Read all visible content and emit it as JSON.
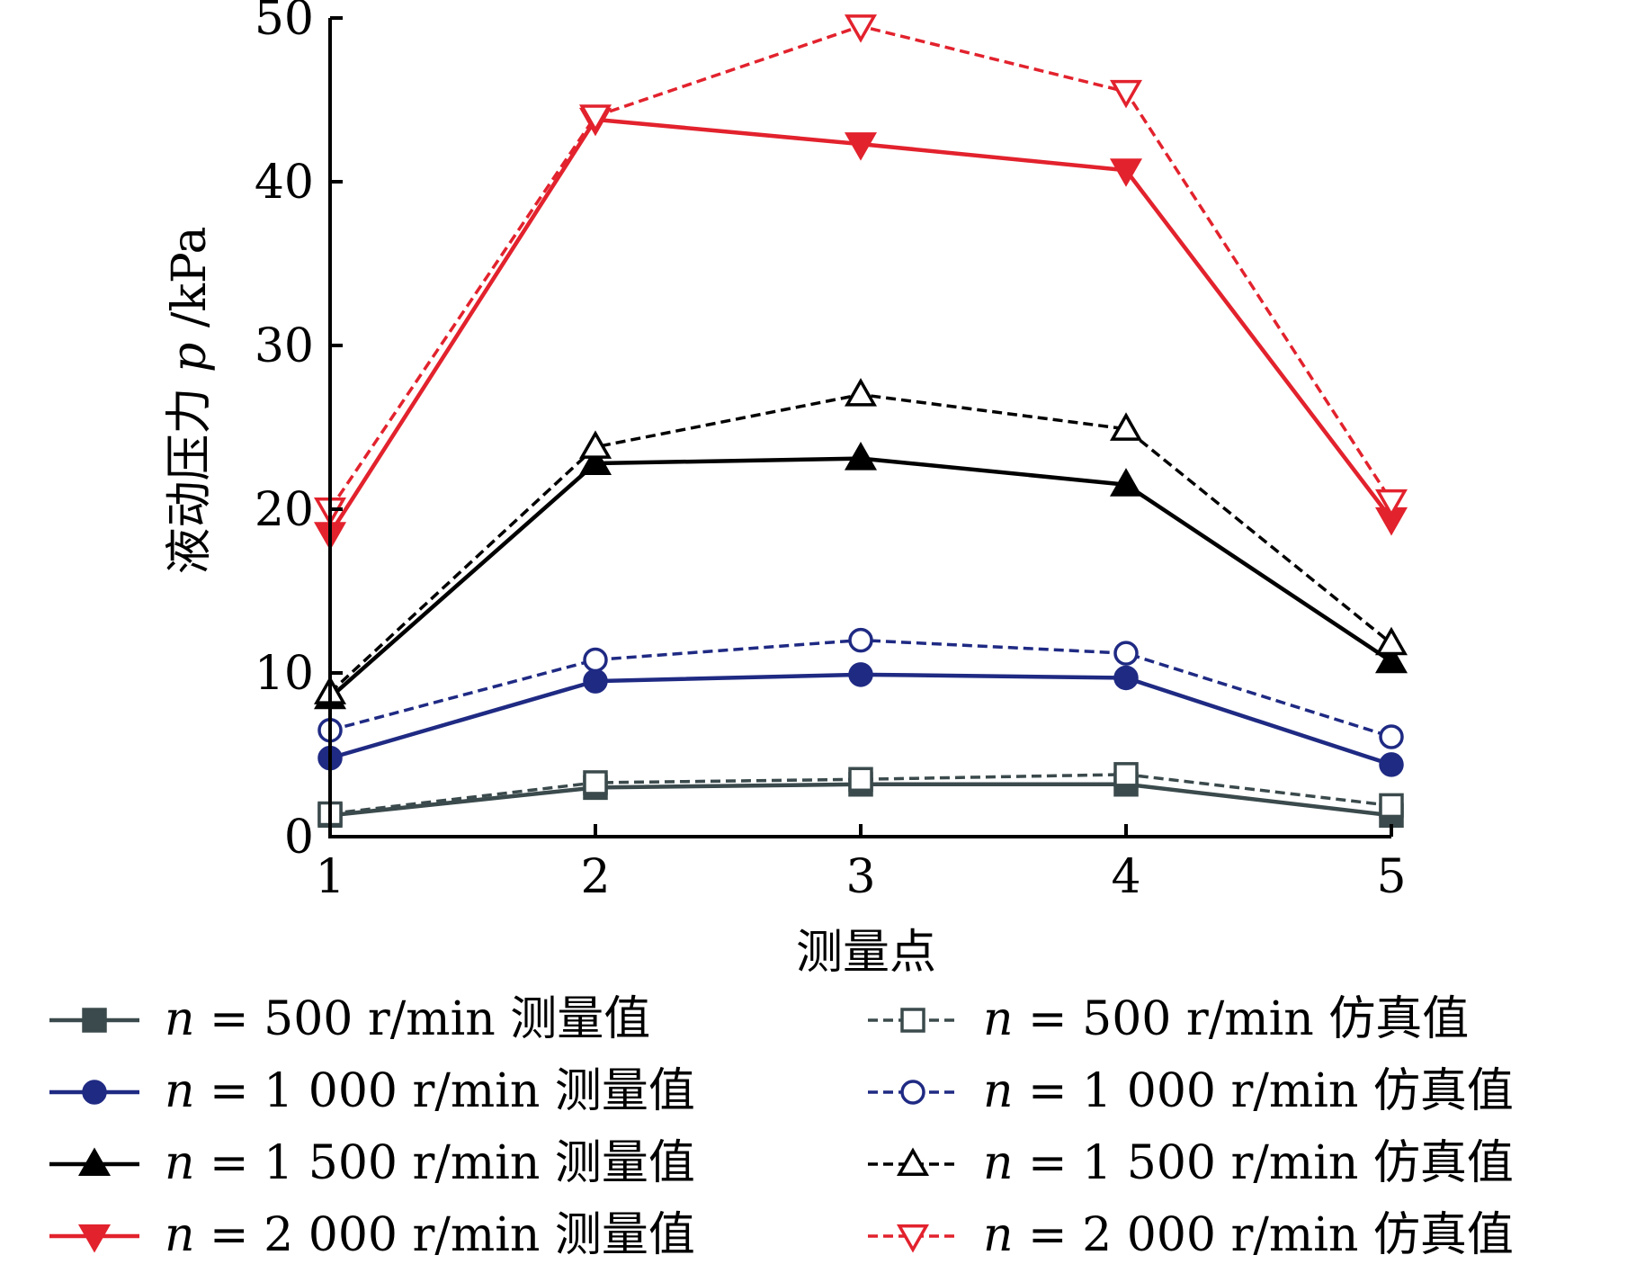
{
  "chart_data": {
    "type": "line",
    "title": "",
    "xlabel": "测量点",
    "ylabel": "液动压力 p /kPa",
    "ylabel_parts": {
      "prefix": "液动压力 ",
      "symbol": "p",
      "suffix": " /kPa"
    },
    "x": [
      1,
      2,
      3,
      4,
      5
    ],
    "xlim": [
      1,
      5
    ],
    "ylim": [
      0,
      50
    ],
    "xticks": [
      "1",
      "2",
      "3",
      "4",
      "5"
    ],
    "yticks": [
      "0",
      "10",
      "20",
      "30",
      "40",
      "50"
    ],
    "grid": false,
    "legend_position": "bottom",
    "series": [
      {
        "name": "n = 500 r/min 测量值",
        "label_symbol": "n",
        "label_rest": " = 500 r/min 测量值",
        "values": [
          1.3,
          3.0,
          3.2,
          3.2,
          1.3
        ],
        "color": "#3b4a4c",
        "dashed": false,
        "marker": "square",
        "filled": true
      },
      {
        "name": "n = 500 r/min 仿真值",
        "label_symbol": "n",
        "label_rest": " = 500 r/min 仿真值",
        "values": [
          1.4,
          3.3,
          3.5,
          3.8,
          1.9
        ],
        "color": "#3b4a4c",
        "dashed": true,
        "marker": "square",
        "filled": false
      },
      {
        "name": "n = 1 000 r/min 测量值",
        "label_symbol": "n",
        "label_rest": " = 1 000 r/min 测量值",
        "values": [
          4.8,
          9.5,
          9.9,
          9.7,
          4.4
        ],
        "color": "#1f2a83",
        "dashed": false,
        "marker": "circle",
        "filled": true
      },
      {
        "name": "n = 1 000 r/min 仿真值",
        "label_symbol": "n",
        "label_rest": " = 1 000 r/min 仿真值",
        "values": [
          6.5,
          10.8,
          12.0,
          11.2,
          6.1
        ],
        "color": "#1f2a83",
        "dashed": true,
        "marker": "circle",
        "filled": false
      },
      {
        "name": "n = 1 500 r/min 测量值",
        "label_symbol": "n",
        "label_rest": " = 1 500 r/min 测量值",
        "values": [
          8.5,
          22.8,
          23.1,
          21.5,
          10.7
        ],
        "color": "#000000",
        "dashed": false,
        "marker": "triangle-up",
        "filled": true
      },
      {
        "name": "n = 1 500 r/min 仿真值",
        "label_symbol": "n",
        "label_rest": " = 1 500 r/min 仿真值",
        "values": [
          8.8,
          23.8,
          27.0,
          24.9,
          11.8
        ],
        "color": "#000000",
        "dashed": true,
        "marker": "triangle-up",
        "filled": false
      },
      {
        "name": "n = 2 000 r/min 测量值",
        "label_symbol": "n",
        "label_rest": " = 2 000 r/min 测量值",
        "values": [
          18.5,
          43.8,
          42.3,
          40.7,
          19.4
        ],
        "color": "#e2222d",
        "dashed": false,
        "marker": "triangle-down",
        "filled": true
      },
      {
        "name": "n = 2 000 r/min 仿真值",
        "label_symbol": "n",
        "label_rest": " = 2 000 r/min 仿真值",
        "values": [
          20.0,
          44.0,
          49.5,
          45.5,
          20.5
        ],
        "color": "#e2222d",
        "dashed": true,
        "marker": "triangle-down",
        "filled": false
      }
    ]
  }
}
